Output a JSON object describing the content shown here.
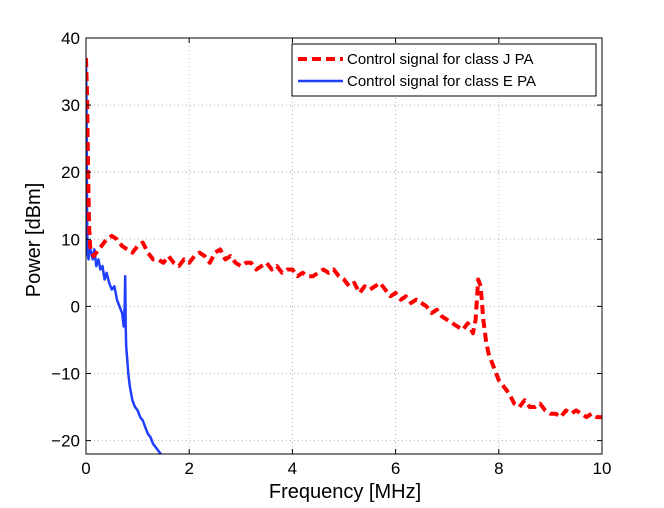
{
  "chart_data": {
    "type": "line",
    "title": "",
    "xlabel": "Frequency [MHz]",
    "ylabel": "Power [dBm]",
    "xlim": [
      0,
      10
    ],
    "ylim": [
      -22,
      40
    ],
    "xticks": [
      0,
      2,
      4,
      6,
      8,
      10
    ],
    "yticks": [
      -20,
      -10,
      0,
      10,
      20,
      30,
      40
    ],
    "grid": true,
    "legend_position": "top-right",
    "series": [
      {
        "name": "Control signal for class J PA",
        "color": "#ff0000",
        "style": "dashed",
        "x": [
          0.0,
          0.02,
          0.04,
          0.06,
          0.08,
          0.1,
          0.15,
          0.2,
          0.3,
          0.4,
          0.5,
          0.6,
          0.7,
          0.8,
          0.9,
          1.0,
          1.1,
          1.2,
          1.3,
          1.4,
          1.5,
          1.6,
          1.7,
          1.8,
          1.9,
          2.0,
          2.1,
          2.2,
          2.3,
          2.4,
          2.5,
          2.6,
          2.7,
          2.8,
          2.9,
          3.0,
          3.1,
          3.2,
          3.3,
          3.4,
          3.5,
          3.6,
          3.7,
          3.8,
          3.9,
          4.0,
          4.1,
          4.2,
          4.3,
          4.4,
          4.5,
          4.6,
          4.7,
          4.8,
          4.9,
          5.0,
          5.1,
          5.2,
          5.3,
          5.4,
          5.5,
          5.6,
          5.7,
          5.8,
          5.9,
          6.0,
          6.1,
          6.2,
          6.3,
          6.4,
          6.5,
          6.6,
          6.7,
          6.8,
          6.9,
          7.0,
          7.1,
          7.2,
          7.3,
          7.4,
          7.5,
          7.55,
          7.6,
          7.65,
          7.7,
          7.75,
          7.8,
          7.9,
          8.0,
          8.1,
          8.2,
          8.3,
          8.4,
          8.5,
          8.6,
          8.7,
          8.8,
          8.9,
          9.0,
          9.1,
          9.2,
          9.3,
          9.4,
          9.5,
          9.6,
          9.7,
          9.8,
          9.9,
          10.0
        ],
        "y": [
          37,
          32,
          20,
          12,
          9,
          8,
          7.5,
          8,
          9,
          10,
          10.5,
          10,
          9,
          8.5,
          8,
          9,
          9.5,
          8,
          7,
          7,
          6.5,
          7.5,
          6.5,
          6,
          7,
          6.5,
          7.5,
          8,
          7.5,
          6.5,
          8,
          8.5,
          7,
          7.5,
          6.5,
          6,
          6.5,
          6.5,
          5.5,
          6,
          6.5,
          5.5,
          6,
          5,
          5.5,
          5.5,
          4.5,
          5,
          4.5,
          4.5,
          5,
          5.5,
          5,
          5.5,
          4.5,
          4,
          3,
          3.5,
          2,
          3,
          2.5,
          3,
          3.5,
          2.5,
          1.5,
          2,
          1,
          1.5,
          0.5,
          1,
          0.5,
          0,
          -1,
          -0.5,
          -1.5,
          -2,
          -2.5,
          -3,
          -3.5,
          -2.5,
          -4,
          -2,
          4,
          3,
          -2,
          -5,
          -7,
          -9,
          -11,
          -12,
          -13,
          -14.5,
          -15,
          -14,
          -15,
          -15,
          -14.5,
          -15.5,
          -16,
          -16,
          -16.5,
          -15.5,
          -16,
          -15.5,
          -16,
          -16.5,
          -16,
          -16.5,
          -16.5
        ]
      },
      {
        "name": "Control signal for class E PA",
        "color": "#1f3fff",
        "style": "solid",
        "x": [
          0.0,
          0.01,
          0.02,
          0.03,
          0.05,
          0.07,
          0.1,
          0.13,
          0.16,
          0.2,
          0.24,
          0.28,
          0.32,
          0.36,
          0.4,
          0.45,
          0.5,
          0.55,
          0.6,
          0.65,
          0.7,
          0.73,
          0.75,
          0.76,
          0.77,
          0.78,
          0.8,
          0.82,
          0.85,
          0.9,
          0.95,
          1.0,
          1.05,
          1.1,
          1.15,
          1.2,
          1.25,
          1.3,
          1.35,
          1.4,
          1.45
        ],
        "y": [
          37,
          30,
          15,
          8,
          7,
          9,
          8,
          7,
          8.5,
          6,
          7,
          5.5,
          6,
          4,
          5,
          3.5,
          2.5,
          3,
          1,
          0,
          -1,
          -3,
          0,
          4.5,
          -3,
          -6,
          -8,
          -10,
          -12,
          -14,
          -15,
          -15.5,
          -16.5,
          -17,
          -18,
          -19,
          -19.5,
          -20.5,
          -21,
          -21.5,
          -22
        ]
      }
    ]
  }
}
